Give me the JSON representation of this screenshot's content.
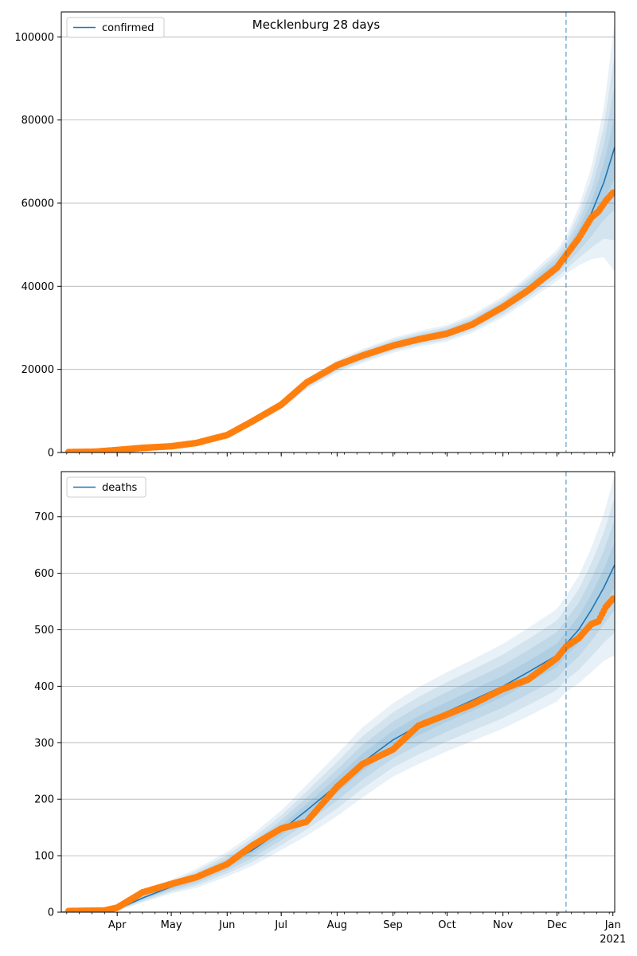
{
  "figure": {
    "suptitle": "Mecklenburg 28 days",
    "forecast_start": "2020-12-06",
    "colors": {
      "fit_line": "#1f77b4",
      "observed": "#ff7f0e",
      "band": "#1f77b4",
      "grid": "#b0b0b0",
      "vline": "#1f77b4"
    },
    "x_axis": {
      "range": [
        "2020-03-01",
        "2021-01-02"
      ],
      "tick_labels": [
        {
          "date": "2020-04-01",
          "label": "Apr"
        },
        {
          "date": "2020-05-01",
          "label": "May"
        },
        {
          "date": "2020-06-01",
          "label": "Jun"
        },
        {
          "date": "2020-07-01",
          "label": "Jul"
        },
        {
          "date": "2020-08-01",
          "label": "Aug"
        },
        {
          "date": "2020-09-01",
          "label": "Sep"
        },
        {
          "date": "2020-10-01",
          "label": "Oct"
        },
        {
          "date": "2020-11-01",
          "label": "Nov"
        },
        {
          "date": "2020-12-01",
          "label": "Dec"
        },
        {
          "date": "2021-01-01",
          "label": "Jan"
        }
      ],
      "year_label": "2021"
    }
  },
  "chart_data": [
    {
      "type": "line",
      "legend": {
        "label": "confirmed",
        "placement": "upper-left"
      },
      "grid": "y",
      "ylim": [
        0,
        106000
      ],
      "yticks": [
        "0",
        "20000",
        "40000",
        "60000",
        "80000",
        "100000"
      ],
      "fit_curve": {
        "x": [
          "2020-03-01",
          "2020-03-15",
          "2020-04-01",
          "2020-04-15",
          "2020-05-01",
          "2020-05-15",
          "2020-06-01",
          "2020-06-15",
          "2020-07-01",
          "2020-07-15",
          "2020-08-01",
          "2020-08-15",
          "2020-09-01",
          "2020-09-15",
          "2020-10-01",
          "2020-10-15",
          "2020-11-01",
          "2020-11-15",
          "2020-12-01",
          "2020-12-06",
          "2020-12-13",
          "2020-12-20",
          "2020-12-27",
          "2021-01-02"
        ],
        "y": [
          0,
          100,
          500,
          1000,
          1500,
          2300,
          4200,
          7500,
          11500,
          16500,
          20700,
          23200,
          25800,
          27300,
          28700,
          31000,
          35000,
          39500,
          45000,
          47500,
          52000,
          57500,
          65000,
          73500
        ],
        "band_half_width": [
          0,
          50,
          150,
          250,
          350,
          500,
          700,
          900,
          1100,
          1300,
          1500,
          1700,
          1800,
          1900,
          2000,
          2200,
          2500,
          3000,
          3800,
          4500,
          7000,
          11000,
          18000,
          30000
        ]
      },
      "observed": {
        "x": [
          "2020-03-05",
          "2020-03-20",
          "2020-04-01",
          "2020-04-15",
          "2020-05-01",
          "2020-05-15",
          "2020-06-01",
          "2020-06-15",
          "2020-07-01",
          "2020-07-15",
          "2020-08-01",
          "2020-08-15",
          "2020-09-01",
          "2020-09-15",
          "2020-10-01",
          "2020-10-15",
          "2020-11-01",
          "2020-11-15",
          "2020-12-01",
          "2020-12-06",
          "2020-12-13",
          "2020-12-20",
          "2020-12-24",
          "2020-12-28",
          "2021-01-01"
        ],
        "y": [
          100,
          200,
          600,
          1100,
          1500,
          2300,
          4200,
          7500,
          11500,
          16800,
          21000,
          23300,
          25700,
          27200,
          28600,
          30800,
          35000,
          39000,
          44500,
          47500,
          51500,
          56500,
          58000,
          60500,
          62500
        ]
      }
    },
    {
      "type": "line",
      "legend": {
        "label": "deaths",
        "placement": "upper-left"
      },
      "grid": "y",
      "ylim": [
        0,
        780
      ],
      "yticks": [
        "0",
        "100",
        "200",
        "300",
        "400",
        "500",
        "600",
        "700"
      ],
      "fit_curve": {
        "x": [
          "2020-03-01",
          "2020-03-20",
          "2020-04-01",
          "2020-04-15",
          "2020-05-01",
          "2020-05-15",
          "2020-06-01",
          "2020-06-15",
          "2020-07-01",
          "2020-07-15",
          "2020-08-01",
          "2020-08-15",
          "2020-09-01",
          "2020-09-15",
          "2020-10-01",
          "2020-10-15",
          "2020-11-01",
          "2020-11-15",
          "2020-12-01",
          "2020-12-06",
          "2020-12-13",
          "2020-12-20",
          "2020-12-27",
          "2021-01-02"
        ],
        "y": [
          0,
          2,
          5,
          25,
          45,
          60,
          85,
          110,
          145,
          180,
          225,
          265,
          305,
          330,
          355,
          375,
          400,
          425,
          455,
          475,
          500,
          535,
          575,
          615
        ],
        "band_half_width": [
          0,
          1,
          3,
          8,
          12,
          17,
          22,
          28,
          35,
          45,
          55,
          62,
          65,
          68,
          70,
          72,
          75,
          78,
          82,
          85,
          95,
          110,
          130,
          160
        ]
      },
      "observed": {
        "x": [
          "2020-03-05",
          "2020-03-25",
          "2020-04-01",
          "2020-04-15",
          "2020-05-01",
          "2020-05-15",
          "2020-06-01",
          "2020-06-15",
          "2020-07-01",
          "2020-07-15",
          "2020-08-01",
          "2020-08-15",
          "2020-09-01",
          "2020-09-15",
          "2020-10-01",
          "2020-10-15",
          "2020-11-01",
          "2020-11-15",
          "2020-12-01",
          "2020-12-06",
          "2020-12-13",
          "2020-12-20",
          "2020-12-24",
          "2020-12-28",
          "2021-01-01"
        ],
        "y": [
          2,
          3,
          8,
          35,
          50,
          62,
          85,
          118,
          148,
          160,
          222,
          262,
          288,
          330,
          350,
          368,
          395,
          412,
          450,
          470,
          485,
          510,
          515,
          540,
          555
        ]
      }
    }
  ]
}
